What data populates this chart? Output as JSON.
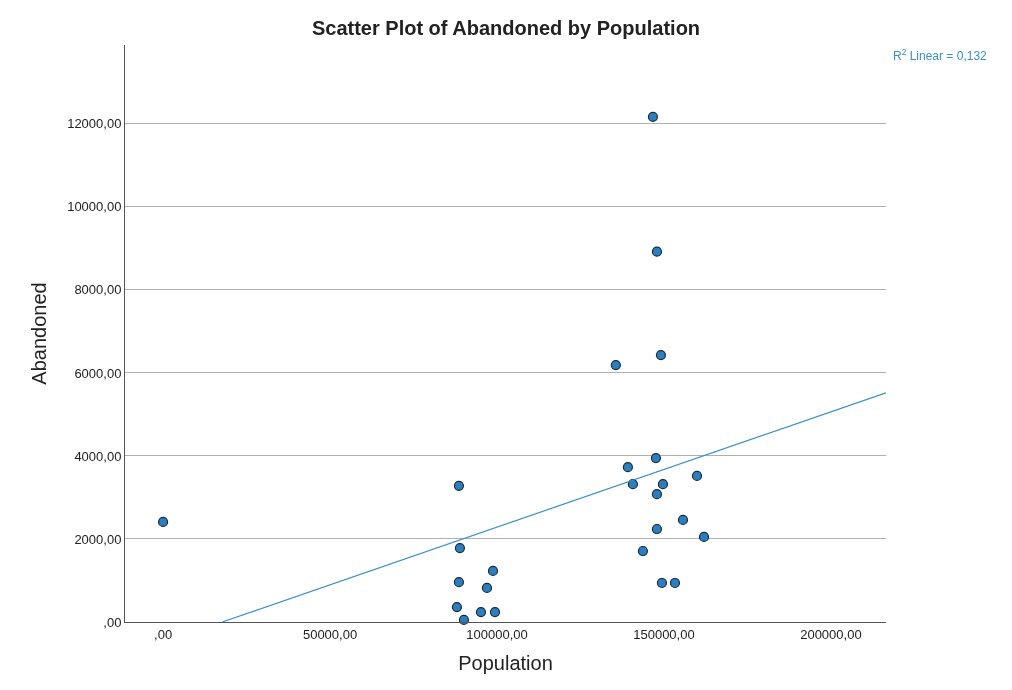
{
  "chart_data": {
    "type": "scatter",
    "title": "Scatter Plot of Abandoned by Population",
    "xlabel": "Population",
    "ylabel": "Abandoned",
    "xlim": [
      -11400,
      216500
    ],
    "ylim": [
      0,
      13900
    ],
    "xticks": [
      {
        "value": 0,
        "label": ",00"
      },
      {
        "value": 50000,
        "label": "50000,00"
      },
      {
        "value": 100000,
        "label": "100000,00"
      },
      {
        "value": 150000,
        "label": "150000,00"
      },
      {
        "value": 200000,
        "label": "200000,00"
      }
    ],
    "yticks": [
      {
        "value": 0,
        "label": ",00"
      },
      {
        "value": 2000,
        "label": "2000,00"
      },
      {
        "value": 4000,
        "label": "4000,00"
      },
      {
        "value": 6000,
        "label": "6000,00"
      },
      {
        "value": 8000,
        "label": "8000,00"
      },
      {
        "value": 10000,
        "label": "10000,00"
      },
      {
        "value": 12000,
        "label": "12000,00"
      }
    ],
    "grid": "y",
    "series": [
      {
        "marker": "circle",
        "color": "#2b7fc0",
        "x": [
          0,
          88600,
          88900,
          88600,
          88000,
          90100,
          95200,
          99400,
          97000,
          98800,
          135600,
          146700,
          147900,
          149100,
          139200,
          147600,
          140700,
          149700,
          147900,
          159900,
          155700,
          147900,
          162000,
          143700,
          149400,
          153300
        ],
        "values": [
          2410,
          3280,
          1780,
          960,
          360,
          50,
          240,
          240,
          820,
          1230,
          6190,
          12170,
          8920,
          6430,
          3730,
          3950,
          3320,
          3320,
          3080,
          3520,
          2460,
          2240,
          2050,
          1710,
          940,
          940
        ]
      },
      {
        "type": "line",
        "color": "#3a8fc8",
        "line_style": "solid",
        "x": [
          17700,
          216500
        ],
        "values": [
          0,
          5520
        ]
      }
    ],
    "annotations": [
      "R$^{2}$ Linear = 0,132"
    ]
  }
}
